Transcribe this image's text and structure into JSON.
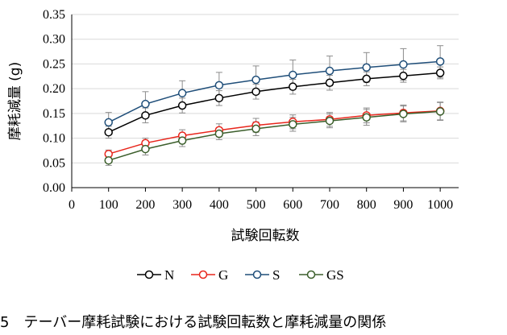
{
  "caption": "5　テーバー摩耗試験における試験回転数と摩耗減量の関係",
  "chart_data": {
    "type": "line",
    "xlabel": "試験回転数",
    "ylabel": "摩耗減量 (g)",
    "xlim": [
      0,
      1050
    ],
    "ylim": [
      0,
      0.35
    ],
    "x_ticks": [
      "0",
      "100",
      "200",
      "300",
      "400",
      "500",
      "600",
      "700",
      "800",
      "900",
      "1000"
    ],
    "y_ticks": [
      "0.00",
      "0.05",
      "0.10",
      "0.15",
      "0.20",
      "0.25",
      "0.30",
      "0.35"
    ],
    "grid": "horizontal",
    "legend_position": "bottom",
    "x": [
      100,
      200,
      300,
      400,
      500,
      600,
      700,
      800,
      900,
      1000
    ],
    "series": [
      {
        "name": "N",
        "color": "#000000",
        "values": [
          0.112,
          0.146,
          0.166,
          0.181,
          0.194,
          0.204,
          0.212,
          0.22,
          0.226,
          0.232
        ],
        "errors": [
          0.012,
          0.015,
          0.015,
          0.015,
          0.015,
          0.015,
          0.015,
          0.014,
          0.013,
          0.012
        ]
      },
      {
        "name": "G",
        "color": "#e8261c",
        "values": [
          0.068,
          0.09,
          0.105,
          0.116,
          0.126,
          0.133,
          0.138,
          0.146,
          0.151,
          0.155
        ],
        "errors": [
          0.008,
          0.01,
          0.012,
          0.013,
          0.014,
          0.014,
          0.014,
          0.015,
          0.016,
          0.018
        ]
      },
      {
        "name": "S",
        "color": "#1f4e79",
        "values": [
          0.132,
          0.169,
          0.191,
          0.207,
          0.218,
          0.228,
          0.236,
          0.243,
          0.249,
          0.255
        ],
        "errors": [
          0.02,
          0.025,
          0.025,
          0.026,
          0.028,
          0.03,
          0.03,
          0.03,
          0.032,
          0.032
        ]
      },
      {
        "name": "GS",
        "color": "#3b5e2b",
        "values": [
          0.055,
          0.078,
          0.095,
          0.109,
          0.119,
          0.128,
          0.135,
          0.142,
          0.149,
          0.154
        ],
        "errors": [
          0.01,
          0.012,
          0.012,
          0.012,
          0.014,
          0.014,
          0.014,
          0.016,
          0.016,
          0.018
        ]
      }
    ]
  }
}
